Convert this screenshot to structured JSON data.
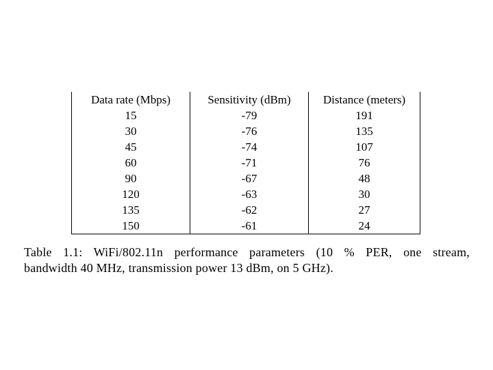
{
  "table": {
    "columns": [
      "Data rate (Mbps)",
      "Sensitivity (dBm)",
      "Distance (meters)"
    ],
    "rows": [
      [
        "15",
        "-79",
        "191"
      ],
      [
        "30",
        "-76",
        "135"
      ],
      [
        "45",
        "-74",
        "107"
      ],
      [
        "60",
        "-71",
        "76"
      ],
      [
        "90",
        "-67",
        "48"
      ],
      [
        "120",
        "-63",
        "30"
      ],
      [
        "135",
        "-62",
        "27"
      ],
      [
        "150",
        "-61",
        "24"
      ]
    ]
  },
  "caption": {
    "line1": "Table 1.1:  WiFi/802.11n performance parameters (10 % PER, one stream,",
    "line2": "bandwidth 40 MHz, transmission power 13 dBm, on 5 GHz)."
  },
  "colors": {
    "background": "#ffffff",
    "text": "#000000",
    "rule": "#000000"
  }
}
